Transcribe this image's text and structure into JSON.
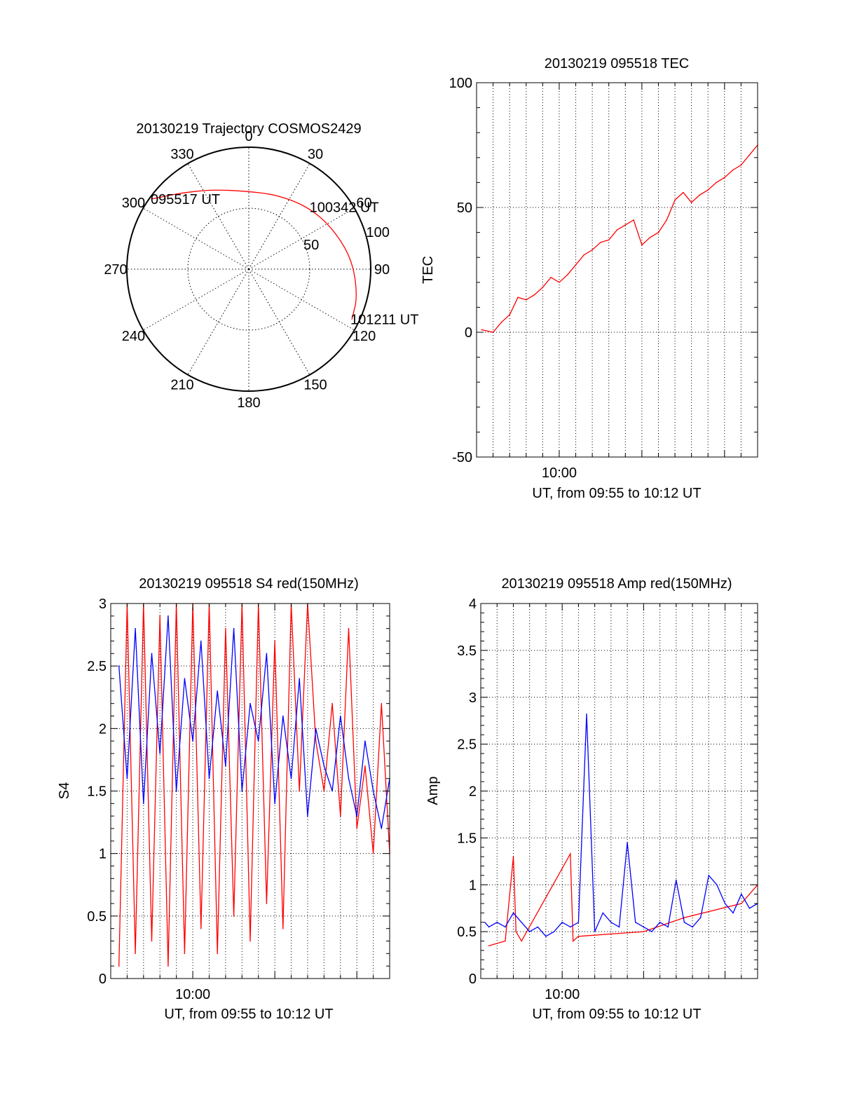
{
  "colors": {
    "red": "#ff0000",
    "blue": "#0000ff",
    "axis": "#000000",
    "grid": "#000000"
  },
  "chart_data": [
    {
      "id": "trajectory",
      "type": "polar",
      "title": "20130219 Trajectory COSMOS2429",
      "angle_labels": [
        "0",
        "30",
        "60",
        "90",
        "120",
        "150",
        "180",
        "210",
        "240",
        "270",
        "300",
        "330"
      ],
      "radial_labels": [
        "50",
        "100"
      ],
      "radial_max": 100,
      "trajectory": [
        {
          "az": 306,
          "r": 98
        },
        {
          "az": 318,
          "r": 84
        },
        {
          "az": 335,
          "r": 72
        },
        {
          "az": 358,
          "r": 64
        },
        {
          "az": 20,
          "r": 65
        },
        {
          "az": 42,
          "r": 70
        },
        {
          "az": 62,
          "r": 76
        },
        {
          "az": 84,
          "r": 85
        },
        {
          "az": 104,
          "r": 92
        },
        {
          "az": 116,
          "r": 94
        }
      ],
      "annotations": [
        {
          "text": "095517 UT",
          "az": 306,
          "r": 98
        },
        {
          "text": "100342 UT",
          "az": 45,
          "r": 72
        },
        {
          "text": "101211 UT",
          "az": 116,
          "r": 94
        }
      ]
    },
    {
      "id": "tec",
      "type": "line",
      "title": "20130219 095518 TEC",
      "ylabel": "TEC",
      "xlabel": "UT, from 09:55 to 10:12 UT",
      "xlim": [
        "09:55",
        "10:12"
      ],
      "ylim": [
        -50,
        100
      ],
      "yticks": [
        -50,
        0,
        50,
        100
      ],
      "xtick_labels": [
        {
          "at": "10:00",
          "label": "10:00"
        }
      ],
      "grid": true,
      "series": [
        {
          "color": "red",
          "x": [
            "09:55:18",
            "09:56:00",
            "09:56:30",
            "09:57:00",
            "09:57:30",
            "09:58:00",
            "09:58:30",
            "09:59:00",
            "09:59:30",
            "10:00:00",
            "10:00:30",
            "10:01:00",
            "10:01:30",
            "10:02:00",
            "10:02:30",
            "10:03:00",
            "10:03:30",
            "10:04:00",
            "10:04:30",
            "10:05:00",
            "10:05:30",
            "10:06:00",
            "10:06:30",
            "10:07:00",
            "10:07:30",
            "10:08:00",
            "10:08:30",
            "10:09:00",
            "10:09:30",
            "10:10:00",
            "10:10:30",
            "10:11:00",
            "10:11:30",
            "10:12:00"
          ],
          "y": [
            1,
            0,
            4,
            7,
            14,
            13,
            15,
            18,
            22,
            20,
            23,
            27,
            31,
            33,
            36,
            37,
            41,
            43,
            45,
            35,
            38,
            40,
            45,
            53,
            56,
            52,
            55,
            57,
            60,
            62,
            65,
            67,
            71,
            75
          ]
        }
      ]
    },
    {
      "id": "s4",
      "type": "line",
      "title": "20130219 095518 S4 red(150MHz)",
      "ylabel": "S4",
      "xlabel": "UT, from 09:55 to 10:12 UT",
      "xlim": [
        "09:55",
        "10:12"
      ],
      "ylim": [
        0,
        3
      ],
      "yticks": [
        0,
        0.5,
        1,
        1.5,
        2,
        2.5,
        3
      ],
      "ytick_labels": [
        "0",
        "0.5",
        "1",
        "1.5",
        "2",
        "2.5",
        "3"
      ],
      "xtick_labels": [
        {
          "at": "10:00",
          "label": "10:00"
        }
      ],
      "grid": true,
      "series": [
        {
          "color": "red",
          "x": [
            "09:55:30",
            "09:56:00",
            "09:56:30",
            "09:57:00",
            "09:57:30",
            "09:58:00",
            "09:58:30",
            "09:59:00",
            "09:59:30",
            "10:00:00",
            "10:00:30",
            "10:01:00",
            "10:01:30",
            "10:02:00",
            "10:02:30",
            "10:03:00",
            "10:03:30",
            "10:04:00",
            "10:04:30",
            "10:05:00",
            "10:05:30",
            "10:06:00",
            "10:06:30",
            "10:07:00",
            "10:07:30",
            "10:08:00",
            "10:08:30",
            "10:09:00",
            "10:09:30",
            "10:10:00",
            "10:10:30",
            "10:11:00",
            "10:11:30",
            "10:12:00"
          ],
          "y": [
            0.1,
            3,
            0.2,
            3,
            0.3,
            2.9,
            0.1,
            3,
            0.2,
            3,
            0.4,
            3,
            0.2,
            2.8,
            0.5,
            3,
            0.3,
            3,
            0.6,
            2.7,
            0.4,
            3,
            1.5,
            3,
            1.9,
            1.5,
            2.2,
            1.3,
            2.8,
            1.2,
            1.7,
            1.0,
            2.2,
            1.0
          ]
        },
        {
          "color": "blue",
          "x": [
            "09:55:30",
            "09:56:00",
            "09:56:30",
            "09:57:00",
            "09:57:30",
            "09:58:00",
            "09:58:30",
            "09:59:00",
            "09:59:30",
            "10:00:00",
            "10:00:30",
            "10:01:00",
            "10:01:30",
            "10:02:00",
            "10:02:30",
            "10:03:00",
            "10:03:30",
            "10:04:00",
            "10:04:30",
            "10:05:00",
            "10:05:30",
            "10:06:00",
            "10:06:30",
            "10:07:00",
            "10:07:30",
            "10:08:00",
            "10:08:30",
            "10:09:00",
            "10:09:30",
            "10:10:00",
            "10:10:30",
            "10:11:00",
            "10:11:30",
            "10:12:00"
          ],
          "y": [
            2.5,
            1.6,
            2.8,
            1.4,
            2.6,
            1.8,
            2.9,
            1.5,
            2.4,
            1.9,
            2.7,
            1.6,
            2.3,
            1.7,
            2.8,
            1.5,
            2.2,
            1.9,
            2.6,
            1.4,
            2.1,
            1.6,
            2.4,
            1.3,
            2.0,
            1.7,
            1.5,
            2.1,
            1.6,
            1.3,
            1.9,
            1.5,
            1.2,
            1.6
          ]
        }
      ]
    },
    {
      "id": "amp",
      "type": "line",
      "title": "20130219 095518 Amp red(150MHz)",
      "ylabel": "Amp",
      "xlabel": "UT, from 09:55 to 10:12 UT",
      "xlim": [
        "09:55",
        "10:12"
      ],
      "ylim": [
        0,
        4
      ],
      "yticks": [
        0,
        0.5,
        1,
        1.5,
        2,
        2.5,
        3,
        3.5,
        4
      ],
      "ytick_labels": [
        "0",
        "0.5",
        "1",
        "1.5",
        "2",
        "2.5",
        "3",
        "3.5",
        "4"
      ],
      "xtick_labels": [
        {
          "at": "10:00",
          "label": "10:00"
        }
      ],
      "grid": true,
      "series": [
        {
          "color": "red",
          "x": [
            "09:55:30",
            "09:56:30",
            "09:57:00",
            "09:57:10",
            "09:57:30",
            "10:00:30",
            "10:00:40",
            "10:01:00",
            "10:05:00",
            "10:07:30",
            "10:11:00",
            "10:12:00"
          ],
          "y": [
            0.35,
            0.4,
            1.3,
            0.5,
            0.4,
            1.33,
            0.4,
            0.45,
            0.5,
            0.65,
            0.8,
            1.0
          ]
        },
        {
          "color": "blue",
          "x": [
            "09:55:15",
            "09:55:30",
            "09:56:00",
            "09:56:30",
            "09:57:00",
            "09:57:30",
            "09:58:00",
            "09:58:30",
            "09:59:00",
            "09:59:30",
            "10:00:00",
            "10:00:30",
            "10:01:00",
            "10:01:30",
            "10:02:00",
            "10:02:30",
            "10:03:00",
            "10:03:30",
            "10:04:00",
            "10:04:30",
            "10:05:00",
            "10:05:30",
            "10:06:00",
            "10:06:30",
            "10:07:00",
            "10:07:30",
            "10:08:00",
            "10:08:30",
            "10:09:00",
            "10:09:30",
            "10:10:00",
            "10:10:30",
            "10:11:00",
            "10:11:30",
            "10:12:00"
          ],
          "y": [
            0.6,
            0.55,
            0.6,
            0.55,
            0.7,
            0.6,
            0.5,
            0.55,
            0.45,
            0.5,
            0.6,
            0.55,
            0.6,
            2.82,
            0.5,
            0.7,
            0.6,
            0.55,
            1.45,
            0.6,
            0.55,
            0.5,
            0.6,
            0.55,
            1.05,
            0.6,
            0.55,
            0.65,
            1.1,
            1.0,
            0.8,
            0.7,
            0.9,
            0.75,
            0.8
          ]
        }
      ]
    }
  ]
}
